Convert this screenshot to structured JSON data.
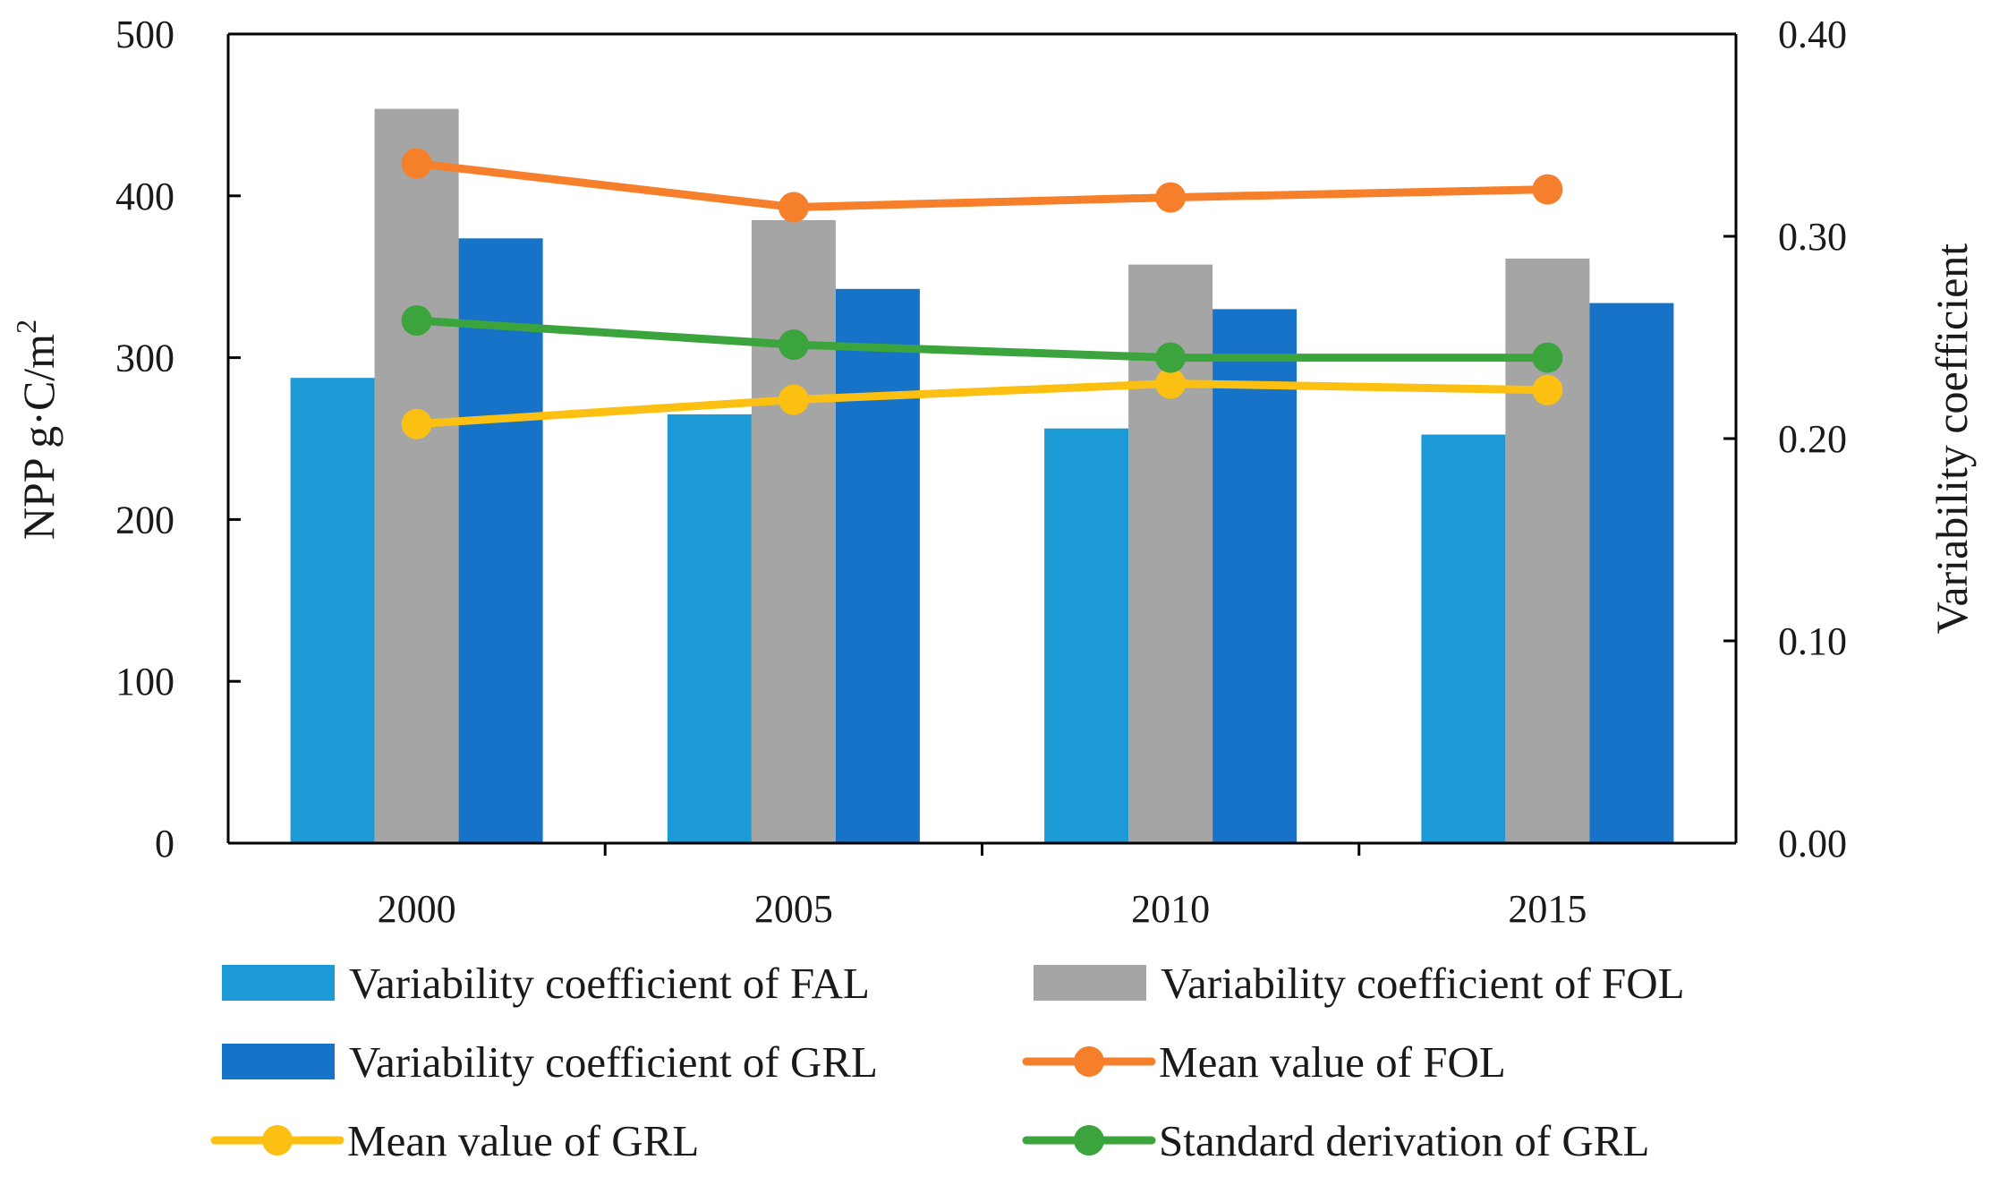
{
  "chart_data": {
    "type": "bar",
    "categories": [
      "2000",
      "2005",
      "2010",
      "2015"
    ],
    "left_axis": {
      "label_main": "NPP g·C/m",
      "label_sup": "2",
      "min": 0,
      "max": 500,
      "ticks": [
        "0",
        "100",
        "200",
        "300",
        "400",
        "500"
      ]
    },
    "right_axis": {
      "label": "Variability coefficient",
      "min": 0,
      "max": 0.4,
      "ticks": [
        "0.00",
        "0.10",
        "0.20",
        "0.30",
        "0.40"
      ]
    },
    "bar_series": [
      {
        "name": "Variability coefficient of FAL",
        "color": "#1b9ad6",
        "values": [
          0.23,
          0.212,
          0.205,
          0.202
        ]
      },
      {
        "name": "Variability coefficient of FOL",
        "color": "#a5a5a5",
        "values": [
          0.363,
          0.308,
          0.286,
          0.289
        ]
      },
      {
        "name": "Variability coefficient of GRL",
        "color": "#1673c8",
        "values": [
          0.299,
          0.274,
          0.264,
          0.267
        ]
      }
    ],
    "line_series": [
      {
        "name": "Mean value of FOL",
        "color": "#f57f2a",
        "values": [
          420,
          393,
          399,
          404
        ]
      },
      {
        "name": "Mean value of GRL",
        "color": "#fbc012",
        "values": [
          259,
          274,
          284,
          280
        ]
      },
      {
        "name": "Standard derivation of GRL",
        "color": "#3ca43c",
        "values": [
          323,
          308,
          300,
          300
        ]
      }
    ],
    "legend": [
      {
        "label": "Variability coefficient of FAL",
        "kind": "bar",
        "color": "#1b9ad6"
      },
      {
        "label": "Variability coefficient of FOL",
        "kind": "bar",
        "color": "#a5a5a5"
      },
      {
        "label": "Variability coefficient of GRL",
        "kind": "bar",
        "color": "#1673c8"
      },
      {
        "label": "Mean value of FOL",
        "kind": "line",
        "color": "#f57f2a"
      },
      {
        "label": "Mean value of GRL",
        "kind": "line",
        "color": "#fbc012"
      },
      {
        "label": "Standard derivation of GRL",
        "kind": "line",
        "color": "#3ca43c"
      }
    ]
  }
}
